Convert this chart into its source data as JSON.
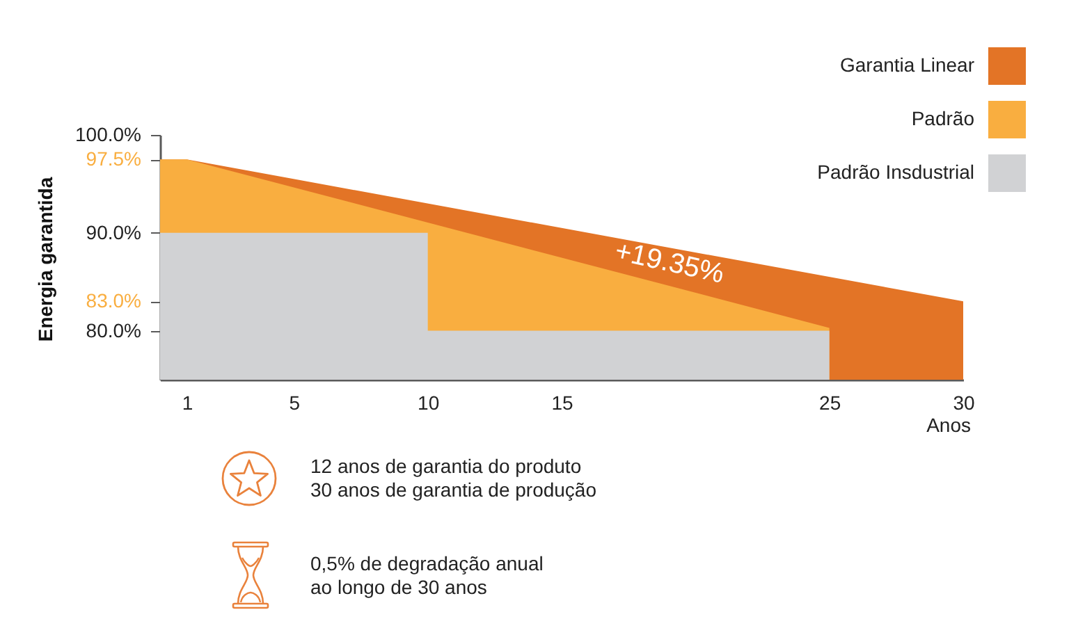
{
  "chart_data": {
    "type": "area",
    "ylabel": "Energia garantida",
    "xlabel": "Anos",
    "xlim": [
      0,
      30
    ],
    "xticks": [
      1,
      5,
      10,
      15,
      25,
      30
    ],
    "ylim": [
      75,
      100
    ],
    "yticks": [
      {
        "value": 80,
        "label": "80.0%"
      },
      {
        "value": 83,
        "label": "83.0%"
      },
      {
        "value": 90,
        "label": "90.0%"
      },
      {
        "value": 97.5,
        "label": "97.5%"
      },
      {
        "value": 100,
        "label": "100.0%"
      }
    ],
    "series": [
      {
        "name": "Garantia Linear",
        "color": "#e37426",
        "x": [
          0,
          1,
          30
        ],
        "values": [
          97.5,
          97.5,
          83.0
        ]
      },
      {
        "name": "Padrão",
        "color": "#f9ae40",
        "x": [
          0,
          1,
          25
        ],
        "values": [
          97.5,
          97.5,
          80.3
        ]
      },
      {
        "name": "Padrão Insdustrial",
        "color": "#d1d2d4",
        "x": [
          0,
          10,
          10,
          25
        ],
        "values": [
          90,
          90,
          80,
          80
        ]
      }
    ],
    "legend": "top right",
    "grid": false,
    "annotations": [
      "+19.35%",
      "12 anos de garantia do produto\n30 anos de garantia de produção",
      "0,5% de degradação anual\nao longo de 30 anos"
    ]
  }
}
